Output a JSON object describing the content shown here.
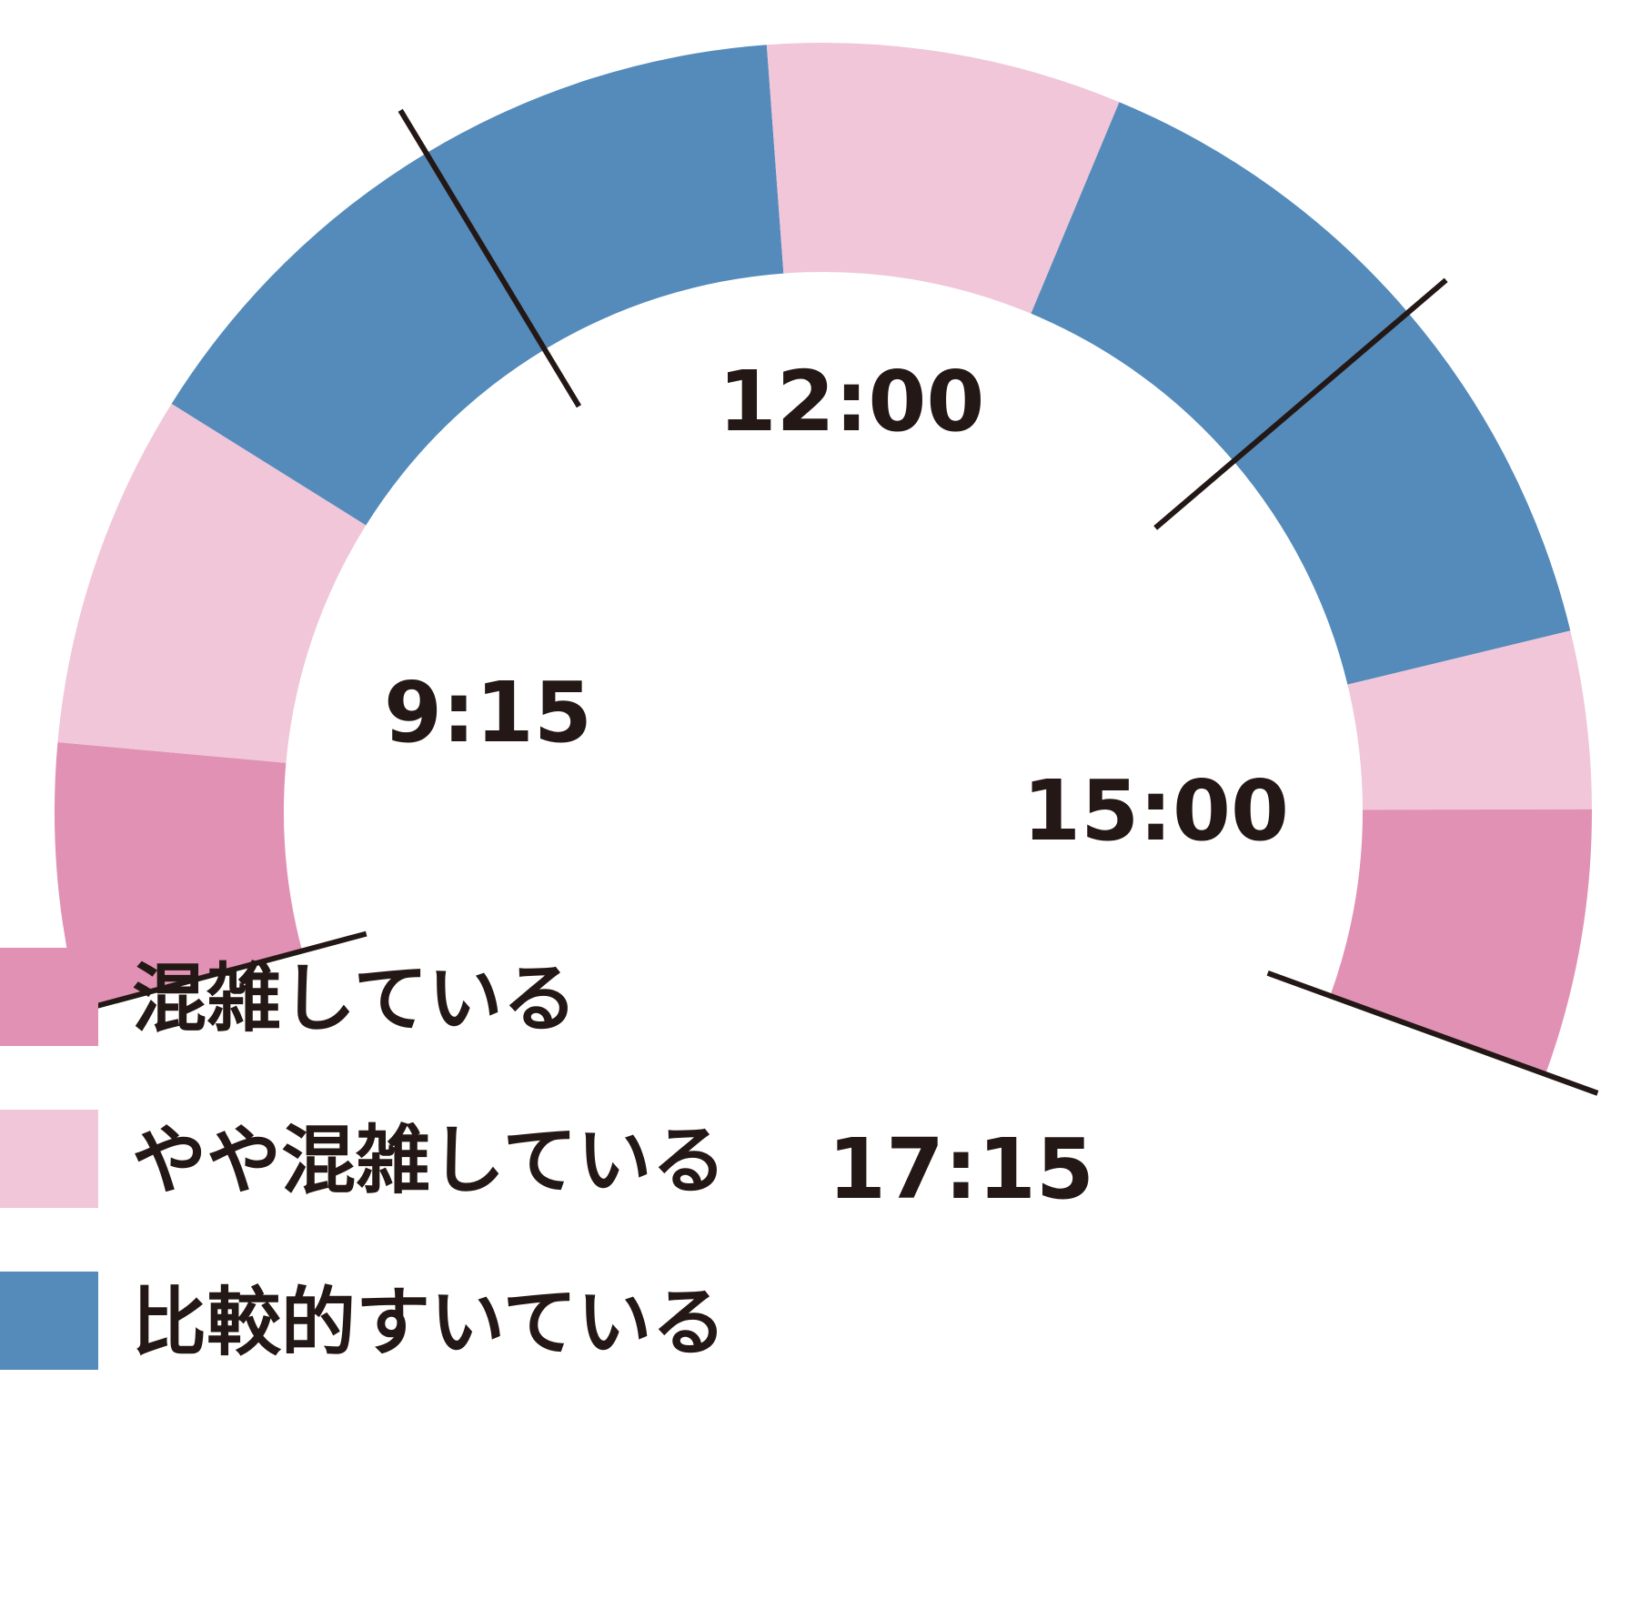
{
  "chart_data": {
    "type": "pie",
    "variant": "partial-ring-timeline",
    "title": "",
    "colors": {
      "crowded": "#e191b4",
      "somewhat_crowded": "#f0c6d8",
      "relatively_empty": "#548bbb",
      "axis": "#231815"
    },
    "legend": [
      {
        "key": "crowded",
        "label": "混雑している"
      },
      {
        "key": "somewhat_crowded",
        "label": "やや混雑している"
      },
      {
        "key": "relatively_empty",
        "label": "比較的すいている"
      }
    ],
    "time_range": [
      "9:15",
      "17:15"
    ],
    "time_labels": [
      "9:15",
      "12:00",
      "15:00",
      "17:15"
    ],
    "segments": [
      {
        "start": "9:15",
        "end": "10:00",
        "status": "crowded"
      },
      {
        "start": "10:00",
        "end": "11:00",
        "status": "somewhat_crowded"
      },
      {
        "start": "11:00",
        "end": "13:00",
        "status": "relatively_empty"
      },
      {
        "start": "13:00",
        "end": "14:00",
        "status": "somewhat_crowded"
      },
      {
        "start": "14:00",
        "end": "16:00",
        "status": "relatively_empty"
      },
      {
        "start": "16:00",
        "end": "16:30",
        "status": "somewhat_crowded"
      },
      {
        "start": "16:30",
        "end": "17:15",
        "status": "crowded"
      }
    ]
  }
}
